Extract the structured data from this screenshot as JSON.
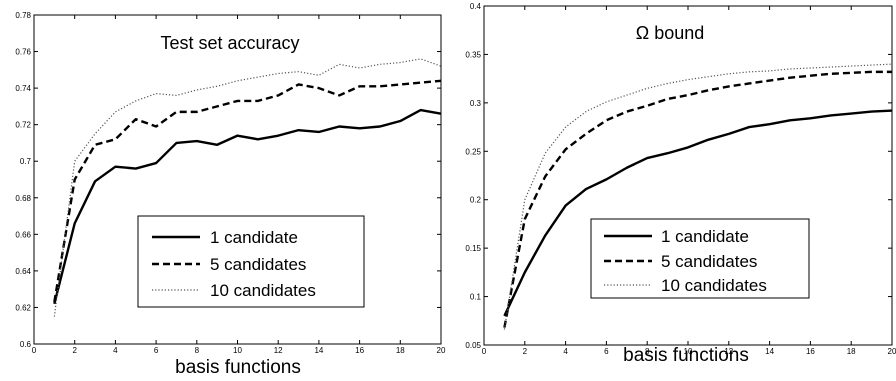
{
  "chart_data": [
    {
      "type": "line",
      "title": "Test set accuracy",
      "xlabel": "basis functions",
      "ylabel": "",
      "xlim": [
        0,
        20
      ],
      "ylim": [
        0.6,
        0.78
      ],
      "xticks": [
        "0",
        "2",
        "4",
        "6",
        "8",
        "10",
        "12",
        "14",
        "16",
        "18",
        "20"
      ],
      "yticks": [
        "0.6",
        "0.62",
        "0.64",
        "0.66",
        "0.68",
        "0.7",
        "0.72",
        "0.74",
        "0.76",
        "0.78"
      ],
      "grid": false,
      "legend_position": "lower-center",
      "x": [
        1,
        2,
        3,
        4,
        5,
        6,
        7,
        8,
        9,
        10,
        11,
        12,
        13,
        14,
        15,
        16,
        17,
        18,
        19,
        20
      ],
      "series": [
        {
          "name": "1 candidate",
          "style": "solid",
          "values": [
            0.622,
            0.666,
            0.689,
            0.697,
            0.696,
            0.699,
            0.71,
            0.711,
            0.709,
            0.714,
            0.712,
            0.714,
            0.717,
            0.716,
            0.719,
            0.718,
            0.719,
            0.722,
            0.728,
            0.726
          ]
        },
        {
          "name": "5 candidates",
          "style": "dashed",
          "values": [
            0.623,
            0.69,
            0.709,
            0.712,
            0.723,
            0.719,
            0.727,
            0.727,
            0.73,
            0.733,
            0.733,
            0.736,
            0.742,
            0.74,
            0.736,
            0.741,
            0.741,
            0.742,
            0.743,
            0.744
          ]
        },
        {
          "name": "10 candidates",
          "style": "dotted",
          "values": [
            0.615,
            0.7,
            0.715,
            0.727,
            0.733,
            0.737,
            0.736,
            0.739,
            0.741,
            0.744,
            0.746,
            0.748,
            0.749,
            0.747,
            0.753,
            0.751,
            0.753,
            0.754,
            0.756,
            0.752
          ]
        }
      ]
    },
    {
      "type": "line",
      "title": "Ω bound",
      "xlabel": "basis functions",
      "ylabel": "",
      "xlim": [
        0,
        20
      ],
      "ylim": [
        0.05,
        0.4
      ],
      "xticks": [
        "0",
        "2",
        "4",
        "6",
        "8",
        "10",
        "12",
        "14",
        "16",
        "18",
        "20"
      ],
      "yticks": [
        "0.05",
        "0.1",
        "0.15",
        "0.2",
        "0.25",
        "0.3",
        "0.35",
        "0.4"
      ],
      "grid": false,
      "legend_position": "lower-center",
      "x": [
        1,
        2,
        3,
        4,
        5,
        6,
        7,
        8,
        9,
        10,
        11,
        12,
        13,
        14,
        15,
        16,
        17,
        18,
        19,
        20
      ],
      "series": [
        {
          "name": "1 candidate",
          "style": "solid",
          "values": [
            0.08,
            0.125,
            0.163,
            0.194,
            0.211,
            0.221,
            0.233,
            0.243,
            0.248,
            0.254,
            0.262,
            0.268,
            0.275,
            0.278,
            0.282,
            0.284,
            0.287,
            0.289,
            0.291,
            0.292
          ]
        },
        {
          "name": "5 candidates",
          "style": "dashed",
          "values": [
            0.068,
            0.18,
            0.224,
            0.252,
            0.268,
            0.282,
            0.291,
            0.297,
            0.304,
            0.308,
            0.313,
            0.317,
            0.32,
            0.323,
            0.326,
            0.328,
            0.33,
            0.331,
            0.332,
            0.332
          ]
        },
        {
          "name": "10 candidates",
          "style": "dotted",
          "values": [
            0.066,
            0.2,
            0.248,
            0.275,
            0.291,
            0.301,
            0.308,
            0.315,
            0.32,
            0.324,
            0.327,
            0.33,
            0.332,
            0.333,
            0.335,
            0.336,
            0.337,
            0.338,
            0.339,
            0.34
          ]
        }
      ]
    }
  ]
}
